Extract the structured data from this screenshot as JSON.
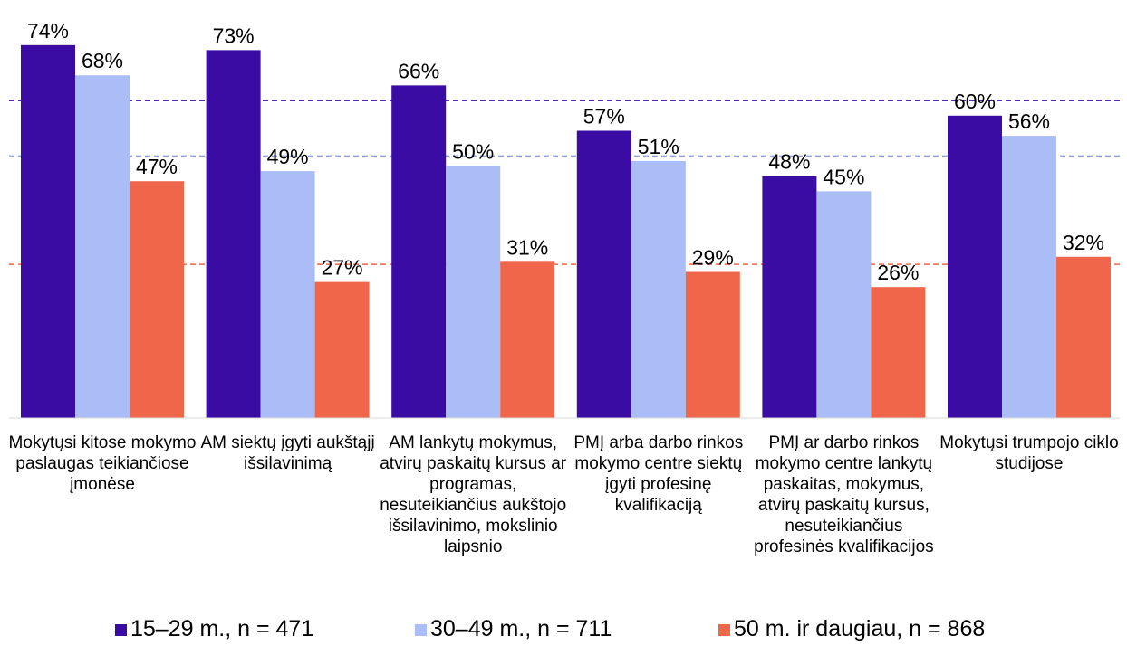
{
  "chart_data": {
    "type": "bar",
    "categories": [
      "Mokytųsi kitose mokymo paslaugas teikiančiose įmonėse",
      "AM siektų įgyti aukštąjį išsilavinimą",
      "AM lankytų mokymus, atvirų paskaitų kursus ar programas, nesuteikiančius aukštojo išsilavinimo, mokslinio laipsnio",
      "PMĮ arba darbo rinkos mokymo centre siektų įgyti profesinę kvalifikaciją",
      "PMĮ ar darbo rinkos mokymo centre lankytų paskaitas, mokymus, atvirų paskaitų kursus, nesuteikiančius profesinės kvalifikacijos",
      "Mokytųsi trumpojo ciklo studijose"
    ],
    "series": [
      {
        "name": "15–29 m., n = 471",
        "color": "#3a0ca3",
        "values": [
          74,
          73,
          66,
          57,
          48,
          60
        ],
        "labels": [
          "74%",
          "73%",
          "66%",
          "57%",
          "48%",
          "60%"
        ]
      },
      {
        "name": "30–49 m., n = 711",
        "color": "#abbdf6",
        "values": [
          68,
          49,
          50,
          51,
          45,
          56
        ],
        "labels": [
          "68%",
          "49%",
          "50%",
          "51%",
          "45%",
          "56%"
        ]
      },
      {
        "name": "50 m. ir daugiau, n = 868",
        "color": "#f0664b",
        "values": [
          47,
          27,
          31,
          29,
          26,
          32
        ],
        "labels": [
          "47%",
          "27%",
          "31%",
          "29%",
          "26%",
          "32%"
        ]
      }
    ],
    "reference_lines": [
      {
        "value": 63,
        "color": "#3a0ca3"
      },
      {
        "value": 52,
        "color": "#8fa6ea"
      },
      {
        "value": 30.5,
        "color": "#f0664b"
      }
    ],
    "ylim": [
      0,
      80
    ],
    "grid": false,
    "legend_position": "bottom"
  }
}
